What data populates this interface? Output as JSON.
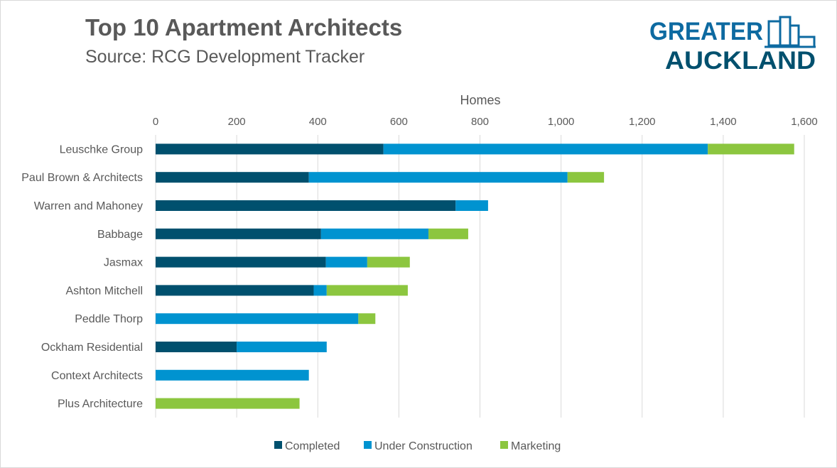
{
  "title": "Top 10 Apartment Architects",
  "subtitle": "Source: RCG Development Tracker",
  "logo": {
    "line1": "GREATER",
    "line2": "AUCKLAND"
  },
  "colors": {
    "completed": "#00506e",
    "under_construction": "#0093d0",
    "marketing": "#8cc63f",
    "text": "#595959",
    "grid": "#d9d9d9"
  },
  "chart_data": {
    "type": "bar",
    "orientation": "horizontal",
    "stacked": true,
    "xlabel": "Homes",
    "xlim": [
      0,
      1600
    ],
    "x_ticks": [
      "0",
      "200",
      "400",
      "600",
      "800",
      "1,000",
      "1,200",
      "1,400",
      "1,600"
    ],
    "x_tick_values": [
      0,
      200,
      400,
      600,
      800,
      1000,
      1200,
      1400,
      1600
    ],
    "grid": "vertical",
    "legend_position": "bottom",
    "categories": [
      "Leuschke Group",
      "Paul Brown & Architects",
      "Warren and Mahoney",
      "Babbage",
      "Jasmax",
      "Ashton Mitchell",
      "Peddle Thorp",
      "Ockham Residential",
      "Context Architects",
      "Plus Architecture"
    ],
    "series": [
      {
        "name": "Completed",
        "color": "#00506e",
        "values": [
          562,
          378,
          740,
          408,
          420,
          390,
          0,
          200,
          0,
          0
        ]
      },
      {
        "name": "Under Construction",
        "color": "#0093d0",
        "values": [
          800,
          638,
          80,
          265,
          102,
          32,
          500,
          222,
          378,
          0
        ]
      },
      {
        "name": "Marketing",
        "color": "#8cc63f",
        "values": [
          213,
          90,
          0,
          98,
          105,
          200,
          42,
          0,
          0,
          355
        ]
      }
    ]
  }
}
